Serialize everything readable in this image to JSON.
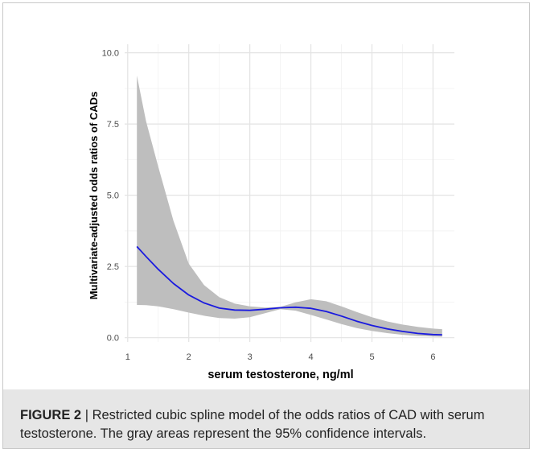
{
  "caption": {
    "label": "FIGURE 2",
    "separator": " | ",
    "text": "Restricted cubic spline model of the odds ratios of CAD with serum testosterone. The gray areas represent the 95% confidence intervals."
  },
  "chart_data": {
    "type": "line",
    "title": "",
    "xlabel": "serum testosterone, ng/ml",
    "ylabel": "Multivariate-adjusted odds ratios of CADs",
    "xlim": [
      0.95,
      6.35
    ],
    "ylim": [
      -0.15,
      10.3
    ],
    "x_ticks": [
      1,
      2,
      3,
      4,
      5,
      6
    ],
    "x_tick_labels": [
      "1",
      "2",
      "3",
      "4",
      "5",
      "6"
    ],
    "y_ticks": [
      0,
      2.5,
      5,
      7.5,
      10
    ],
    "y_tick_labels": [
      "0.0",
      "2.5",
      "5.0",
      "7.5",
      "10.0"
    ],
    "grid": true,
    "legend": "none",
    "line_color": "#1a1adf",
    "band_color": "#bebebe",
    "series": [
      {
        "x": [
          1.15,
          1.3,
          1.5,
          1.75,
          2.0,
          2.25,
          2.5,
          2.75,
          3.0,
          3.25,
          3.5,
          3.75,
          4.0,
          4.25,
          4.5,
          4.75,
          5.0,
          5.25,
          5.5,
          5.75,
          6.0,
          6.15
        ],
        "y": [
          3.2,
          2.85,
          2.4,
          1.9,
          1.5,
          1.22,
          1.04,
          0.97,
          0.96,
          1.0,
          1.05,
          1.07,
          1.03,
          0.92,
          0.76,
          0.58,
          0.43,
          0.31,
          0.22,
          0.15,
          0.11,
          0.1
        ],
        "lower": [
          1.15,
          1.14,
          1.1,
          1.0,
          0.88,
          0.77,
          0.69,
          0.67,
          0.72,
          0.86,
          1.0,
          0.95,
          0.8,
          0.64,
          0.48,
          0.34,
          0.24,
          0.16,
          0.1,
          0.06,
          0.04,
          0.03
        ],
        "upper": [
          9.2,
          7.6,
          6.0,
          4.1,
          2.6,
          1.85,
          1.42,
          1.2,
          1.1,
          1.06,
          1.08,
          1.24,
          1.35,
          1.28,
          1.1,
          0.9,
          0.72,
          0.57,
          0.46,
          0.38,
          0.32,
          0.3
        ]
      }
    ]
  }
}
